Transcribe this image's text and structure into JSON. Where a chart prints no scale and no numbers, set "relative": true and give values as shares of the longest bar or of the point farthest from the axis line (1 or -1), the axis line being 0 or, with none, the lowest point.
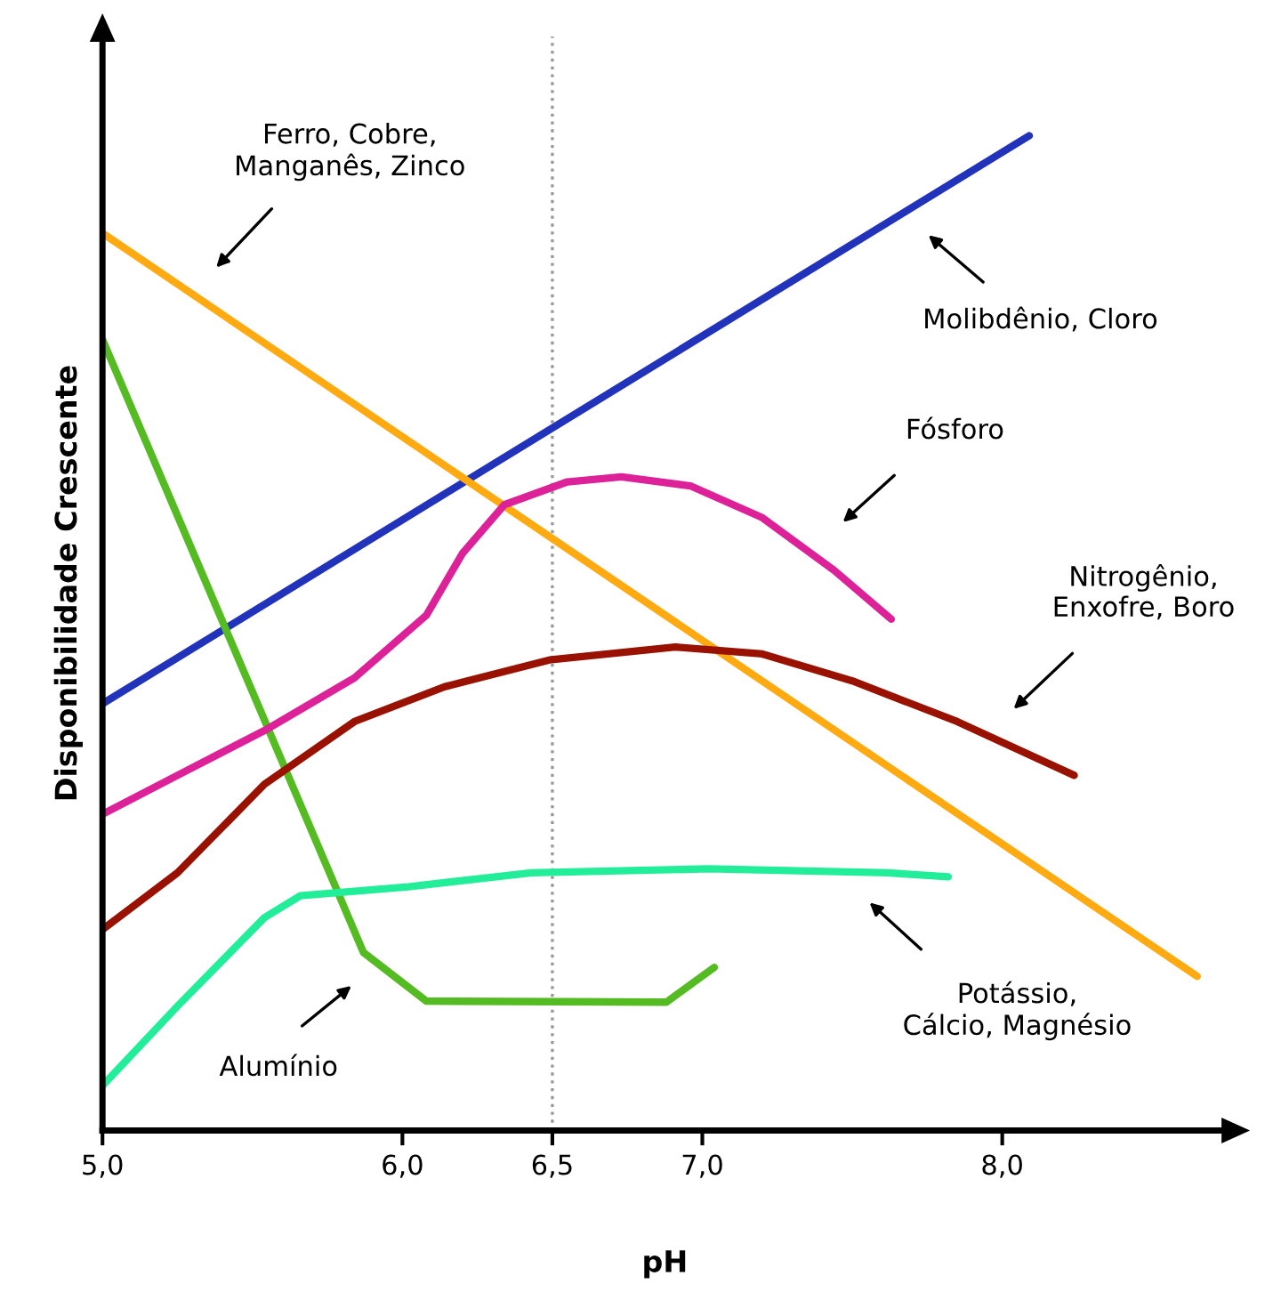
{
  "chart_data": {
    "type": "line",
    "relative": true,
    "xlabel": "pH",
    "ylabel": "Disponibilidade Crescente",
    "xlim": [
      5.0,
      8.75
    ],
    "xticks": [
      {
        "value": 5.0,
        "label": "5,0"
      },
      {
        "value": 6.0,
        "label": "6,0"
      },
      {
        "value": 6.5,
        "label": "6,5"
      },
      {
        "value": 7.0,
        "label": "7,0"
      },
      {
        "value": 8.0,
        "label": "8,0"
      }
    ],
    "grid": false,
    "legend": false,
    "marker": "none",
    "line_style": "solid",
    "ref_lines": [
      {
        "axis": "x",
        "value": 6.5,
        "color": "#999999",
        "line_style": "dotted"
      }
    ],
    "series": [
      {
        "color": "#2233bb",
        "x": [
          5.0,
          8.09
        ],
        "values": [
          0.429,
          1.0
        ]
      },
      {
        "color": "#ffaa11",
        "x": [
          5.0,
          8.65
        ],
        "values": [
          0.902,
          0.155
        ]
      },
      {
        "color": "#55bb22",
        "x": [
          5.0,
          5.87,
          6.08,
          6.88,
          7.04
        ],
        "values": [
          0.795,
          0.179,
          0.13,
          0.129,
          0.164
        ]
      },
      {
        "color": "#dd2299",
        "x": [
          5.0,
          5.25,
          5.54,
          5.84,
          6.08,
          6.2,
          6.34,
          6.55,
          6.73,
          6.96,
          7.2,
          7.44,
          7.63
        ],
        "values": [
          0.318,
          0.357,
          0.402,
          0.455,
          0.518,
          0.58,
          0.629,
          0.652,
          0.657,
          0.648,
          0.616,
          0.563,
          0.514
        ]
      },
      {
        "color": "#991100",
        "x": [
          5.0,
          5.25,
          5.54,
          5.84,
          6.14,
          6.49,
          6.91,
          7.2,
          7.5,
          7.85,
          8.24
        ],
        "values": [
          0.202,
          0.259,
          0.348,
          0.411,
          0.446,
          0.473,
          0.486,
          0.479,
          0.452,
          0.411,
          0.357
        ]
      },
      {
        "color": "#22ee99",
        "x": [
          5.0,
          5.25,
          5.54,
          5.66,
          6.02,
          6.43,
          7.02,
          7.62,
          7.82
        ],
        "values": [
          0.045,
          0.125,
          0.214,
          0.236,
          0.245,
          0.259,
          0.263,
          0.259,
          0.255
        ]
      }
    ],
    "annotations": [
      "Ferro, Cobre,\nManganês, Zinco",
      "Molibdênio, Cloro",
      "Fósforo",
      "Nitrogênio,\nEnxofre, Boro",
      "Potássio,\nCálcio, Magnésio",
      "Alumínio"
    ]
  }
}
